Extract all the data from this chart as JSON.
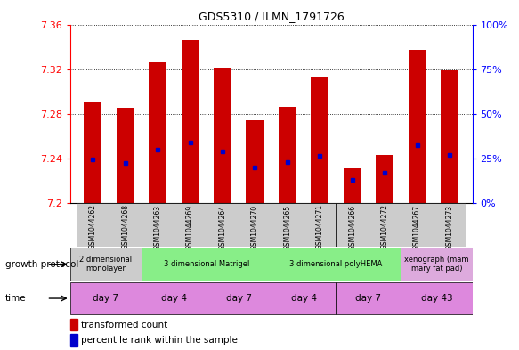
{
  "title": "GDS5310 / ILMN_1791726",
  "samples": [
    "GSM1044262",
    "GSM1044268",
    "GSM1044263",
    "GSM1044269",
    "GSM1044264",
    "GSM1044270",
    "GSM1044265",
    "GSM1044271",
    "GSM1044266",
    "GSM1044272",
    "GSM1044267",
    "GSM1044273"
  ],
  "bar_tops": [
    7.29,
    7.285,
    7.326,
    7.346,
    7.321,
    7.274,
    7.286,
    7.313,
    7.231,
    7.243,
    7.337,
    7.319
  ],
  "bar_bottom": 7.2,
  "blue_markers": [
    7.239,
    7.236,
    7.248,
    7.254,
    7.246,
    7.232,
    7.237,
    7.242,
    7.221,
    7.227,
    7.252,
    7.243
  ],
  "ylim": [
    7.2,
    7.36
  ],
  "yticks_left": [
    7.2,
    7.24,
    7.28,
    7.32,
    7.36
  ],
  "yticks_right": [
    0,
    25,
    50,
    75,
    100
  ],
  "bar_color": "#cc0000",
  "marker_color": "#0000cc",
  "bar_width": 0.55,
  "growth_protocol_groups": [
    {
      "label": "2 dimensional\nmonolayer",
      "start": 0,
      "end": 2,
      "color": "#cccccc"
    },
    {
      "label": "3 dimensional Matrigel",
      "start": 2,
      "end": 6,
      "color": "#88ee88"
    },
    {
      "label": "3 dimensional polyHEMA",
      "start": 6,
      "end": 10,
      "color": "#88ee88"
    },
    {
      "label": "xenograph (mam\nmary fat pad)",
      "start": 10,
      "end": 12,
      "color": "#ddaadd"
    }
  ],
  "time_groups": [
    {
      "label": "day 7",
      "start": 0,
      "end": 2
    },
    {
      "label": "day 4",
      "start": 2,
      "end": 4
    },
    {
      "label": "day 7",
      "start": 4,
      "end": 6
    },
    {
      "label": "day 4",
      "start": 6,
      "end": 8
    },
    {
      "label": "day 7",
      "start": 8,
      "end": 10
    },
    {
      "label": "day 43",
      "start": 10,
      "end": 12
    }
  ],
  "time_color": "#dd88dd",
  "sample_bg_color": "#cccccc",
  "legend_items": [
    {
      "label": "transformed count",
      "color": "#cc0000",
      "marker": "square"
    },
    {
      "label": "percentile rank within the sample",
      "color": "#0000cc",
      "marker": "square"
    }
  ]
}
